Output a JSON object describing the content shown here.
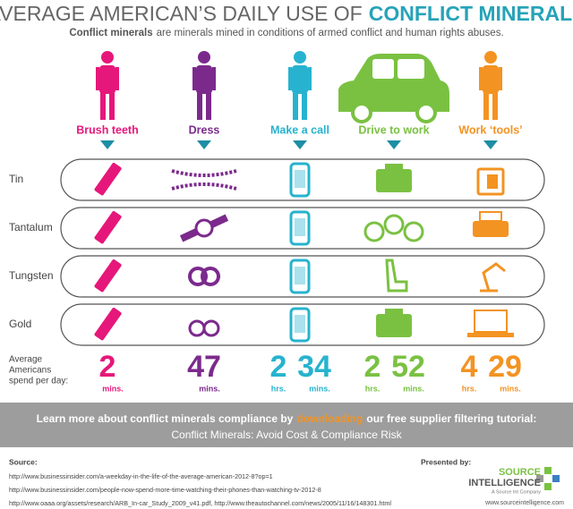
{
  "header": {
    "title": [
      "AVERAGE AMERICAN’S DAILY USE OF",
      "CONFLICT MINERALS"
    ],
    "subtitle": [
      "Conflict minerals",
      "are minerals mined in conditions of armed conflict and human rights abuses."
    ]
  },
  "activities": [
    {
      "label": "Brush teeth",
      "color": "#e6177a",
      "time": [
        {
          "value": "2",
          "unit": "mins."
        }
      ]
    },
    {
      "label": "Dress",
      "color": "#7b2a8c",
      "time": [
        {
          "value": "47",
          "unit": "mins."
        }
      ]
    },
    {
      "label": "Make a call",
      "color": "#27b3cf",
      "time": [
        {
          "value": "2",
          "unit": "hrs."
        },
        {
          "value": "34",
          "unit": "mins."
        }
      ]
    },
    {
      "label": "Drive to work",
      "color": "#7ac142",
      "time": [
        {
          "value": "2",
          "unit": "hrs."
        },
        {
          "value": "52",
          "unit": "mins."
        }
      ]
    },
    {
      "label": "Work ‘tools’",
      "color": "#f39322",
      "time": [
        {
          "value": "4",
          "unit": "hrs."
        },
        {
          "value": "29",
          "unit": "mins."
        }
      ]
    }
  ],
  "minerals": [
    "Tin",
    "Tantalum",
    "Tungsten",
    "Gold"
  ],
  "spend_label": [
    "Average",
    "Americans",
    "spend per day:"
  ],
  "banner": {
    "line1": [
      "Learn more about conflict minerals compliance by",
      "downloading",
      "our free supplier filtering tutorial:"
    ],
    "line2": "Conflict Minerals: Avoid Cost & Compliance Risk"
  },
  "sources": {
    "title": "Source:",
    "urls": [
      "http://www.businessinsider.com/a-weekday-in-the-life-of-the-average-american-2012-8?op=1",
      "http://www.businessinsider.com/people-now-spend-more-time-watching-their-phones-than-watching-tv-2012-8",
      "http://www.oaaa.org/assets/research/ARB_In-car_Study_2009_v41.pdf, http://www.theautochannel.com/news/2005/11/16/148301.html"
    ]
  },
  "presenter": {
    "label": "Presented by:",
    "logo": [
      "SOURCE",
      "INTELLIGENCE"
    ],
    "tagline": "A Source Int Company",
    "url": "www.sourceintelligence.com"
  }
}
